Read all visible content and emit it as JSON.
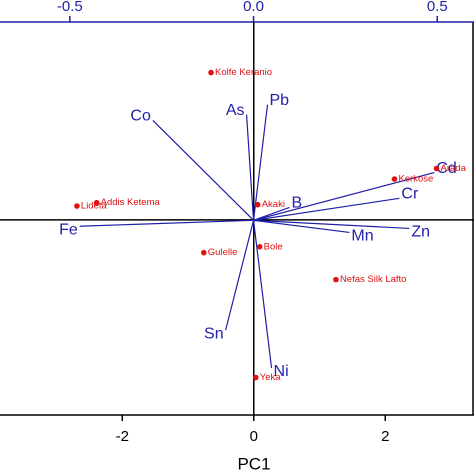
{
  "chart_data": {
    "type": "biplot",
    "x_label": "PC1",
    "xlim": [
      -3.86,
      3.35
    ],
    "xticks": [
      -2,
      0,
      2
    ],
    "ylim": [
      -2.97,
      3.01
    ],
    "x2lim": [
      -0.69,
      0.6
    ],
    "x2ticks": [
      -0.5,
      {
        "value": 0,
        "label": "0.0"
      },
      0.5
    ],
    "y2lim": [
      -0.53,
      0.54
    ],
    "x2_color": "#1f1fa8",
    "scores": {
      "color": "#dd1111",
      "labels": [
        "Kolfe Keranio",
        "Lideta",
        "Addis Ketema",
        "Akaki",
        "Arada",
        "Kerkose",
        "Gulelle",
        "Bole",
        "Nefas Silk Lafto",
        "Yeka"
      ],
      "x": [
        -0.65,
        -2.69,
        -2.39,
        0.06,
        2.78,
        2.14,
        -0.76,
        0.09,
        1.25,
        0.03
      ],
      "y": [
        2.24,
        0.21,
        0.26,
        0.23,
        0.78,
        0.62,
        -0.5,
        -0.41,
        -0.91,
        -2.4
      ]
    },
    "loadings": {
      "color": "#1f1fa8",
      "labels": [
        "Co",
        "As",
        "Pb",
        "Cd",
        "Cr",
        "Zn",
        "Mn",
        "B",
        "Fe",
        "Sn",
        "Ni"
      ],
      "x": [
        -0.274,
        -0.019,
        0.038,
        0.492,
        0.397,
        0.424,
        0.261,
        0.098,
        -0.473,
        -0.076,
        0.049
      ],
      "y": [
        0.272,
        0.288,
        0.315,
        0.13,
        0.06,
        -0.022,
        -0.033,
        0.035,
        -0.016,
        -0.299,
        -0.402
      ]
    }
  }
}
